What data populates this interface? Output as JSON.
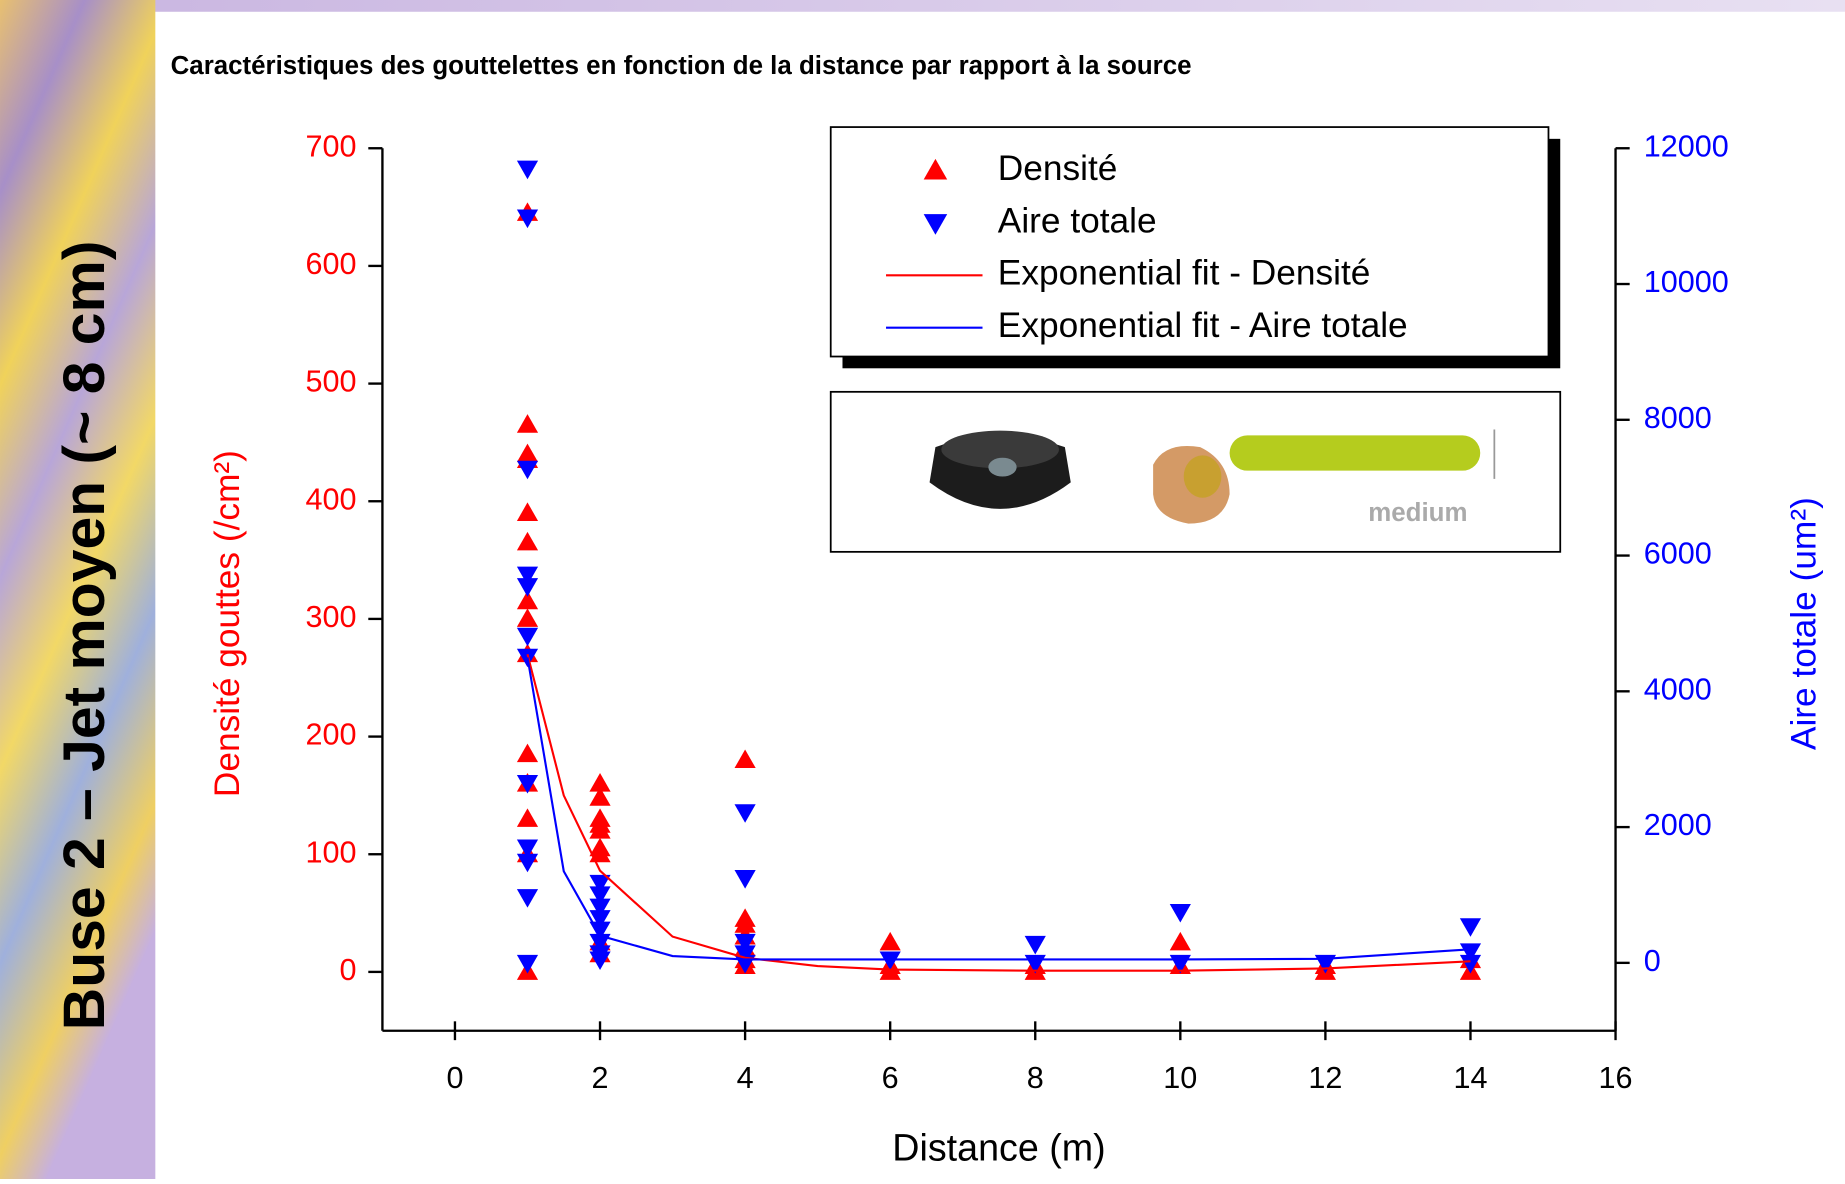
{
  "slide_title": "Buse 2 – Jet moyen (~ 8 cm)",
  "chart_data": {
    "type": "scatter",
    "title": "Caractéristiques des gouttelettes en fonction de la distance par rapport à la source",
    "x_label": "Distance (m)",
    "y_label": "Densité gouttes (/cm²)",
    "y2_label": "Aire totale (um²)",
    "xlim": [
      -1,
      16
    ],
    "xticks": [
      0,
      2,
      4,
      6,
      8,
      10,
      12,
      14,
      16
    ],
    "ylim": [
      -50,
      700
    ],
    "yticks": [
      0,
      100,
      200,
      300,
      400,
      500,
      600,
      700
    ],
    "y2lim": [
      -1000,
      12000
    ],
    "y2ticks": [
      0,
      2000,
      4000,
      6000,
      8000,
      10000,
      12000
    ],
    "y_color": "#ff0000",
    "y2_color": "#0000ff",
    "legend": "top-right",
    "inset_label": "medium",
    "series": [
      {
        "name": "Densité",
        "color": "#ff0000",
        "marker": "triangle-up",
        "x": [
          1,
          1,
          1,
          1,
          1,
          1,
          1,
          1,
          1,
          1,
          1,
          1,
          1,
          1,
          2,
          2,
          2,
          2,
          2,
          2,
          2,
          2,
          2,
          4,
          4,
          4,
          4,
          4,
          4,
          4,
          6,
          6,
          6,
          8,
          8,
          10,
          10,
          12,
          12,
          14,
          14
        ],
        "values": [
          645,
          465,
          440,
          435,
          390,
          365,
          315,
          300,
          270,
          185,
          160,
          130,
          100,
          0,
          160,
          148,
          130,
          125,
          120,
          105,
          100,
          25,
          15,
          180,
          45,
          40,
          30,
          20,
          10,
          5,
          25,
          5,
          0,
          5,
          0,
          25,
          5,
          5,
          0,
          10,
          0
        ]
      },
      {
        "name": "Aire totale",
        "color": "#0000ff",
        "marker": "triangle-down",
        "axis": "y2",
        "x": [
          1,
          1,
          1,
          1,
          1,
          1,
          1,
          1,
          1,
          1,
          1,
          1,
          2,
          2,
          2,
          2,
          2,
          2,
          2,
          2,
          4,
          4,
          4,
          4,
          4,
          6,
          8,
          8,
          10,
          10,
          12,
          14,
          14,
          14
        ],
        "values": [
          11700,
          10980,
          7280,
          5720,
          5550,
          4820,
          4510,
          2650,
          1700,
          1490,
          970,
          0,
          1180,
          1010,
          830,
          660,
          490,
          310,
          140,
          50,
          2220,
          1250,
          310,
          140,
          0,
          50,
          280,
          0,
          750,
          0,
          0,
          540,
          170,
          0
        ]
      },
      {
        "name": "Exponential fit - Densité",
        "color": "#ff0000",
        "marker": "line",
        "x": [
          1,
          1.5,
          2,
          3,
          4,
          5,
          6,
          8,
          10,
          12,
          14
        ],
        "values": [
          270,
          150,
          86,
          30,
          12,
          5,
          2,
          1,
          1,
          3,
          9
        ]
      },
      {
        "name": "Exponential fit - Aire totale",
        "color": "#0000ff",
        "marker": "line",
        "axis": "y2",
        "x": [
          1,
          1.5,
          2,
          3,
          4,
          5,
          6,
          8,
          10,
          12,
          14
        ],
        "values": [
          4500,
          1350,
          400,
          100,
          50,
          50,
          50,
          50,
          50,
          60,
          200
        ]
      }
    ]
  }
}
